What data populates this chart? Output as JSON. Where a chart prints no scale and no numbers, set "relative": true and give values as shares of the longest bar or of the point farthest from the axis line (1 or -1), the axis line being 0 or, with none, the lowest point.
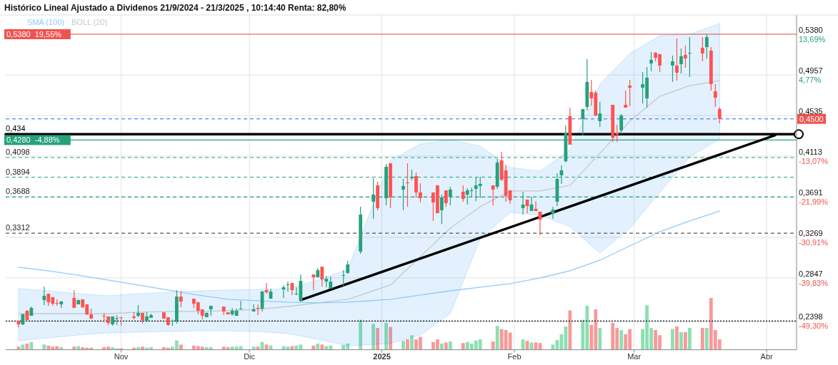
{
  "chart_data": [
    {
      "type": "candlestick",
      "title": "Histórico Lineal Ajustado a Dividenos 21/9/2024 - 21/3/2025 , 10:14:40 Renta: 82,80%",
      "x": [
        "2024-10-08",
        "2024-10-09",
        "2024-10-10",
        "2024-10-11",
        "2024-10-14",
        "2024-10-15",
        "2024-10-16",
        "2024-10-17",
        "2024-10-18",
        "2024-10-21",
        "2024-10-22",
        "2024-10-23",
        "2024-10-24",
        "2024-10-25",
        "2024-10-28",
        "2024-10-29",
        "2024-10-30",
        "2024-10-31",
        "2024-11-01",
        "2024-11-04",
        "2024-11-05",
        "2024-11-06",
        "2024-11-07",
        "2024-11-08",
        "2024-11-11",
        "2024-11-12",
        "2024-11-13",
        "2024-11-14",
        "2024-11-15",
        "2024-11-18",
        "2024-11-19",
        "2024-11-20",
        "2024-11-21",
        "2024-11-22",
        "2024-11-25",
        "2024-11-26",
        "2024-11-27",
        "2024-11-28",
        "2024-11-29",
        "2024-12-02",
        "2024-12-03",
        "2024-12-04",
        "2024-12-05",
        "2024-12-06",
        "2024-12-09",
        "2024-12-10",
        "2024-12-11",
        "2024-12-12",
        "2024-12-13",
        "2024-12-16",
        "2024-12-17",
        "2024-12-18",
        "2024-12-19",
        "2024-12-20",
        "2024-12-23",
        "2024-12-24",
        "2024-12-27",
        "2024-12-30",
        "2024-12-31",
        "2025-01-02",
        "2025-01-03",
        "2025-01-06",
        "2025-01-07",
        "2025-01-08",
        "2025-01-09",
        "2025-01-10",
        "2025-01-13",
        "2025-01-14",
        "2025-01-15",
        "2025-01-16",
        "2025-01-17",
        "2025-01-20",
        "2025-01-21",
        "2025-01-22",
        "2025-01-23",
        "2025-01-24",
        "2025-01-27",
        "2025-01-28",
        "2025-01-29",
        "2025-01-30",
        "2025-01-31",
        "2025-02-03",
        "2025-02-04",
        "2025-02-05",
        "2025-02-06",
        "2025-02-07",
        "2025-02-10",
        "2025-02-11",
        "2025-02-12",
        "2025-02-13",
        "2025-02-14",
        "2025-02-17",
        "2025-02-18",
        "2025-02-19",
        "2025-02-20",
        "2025-02-21",
        "2025-02-24",
        "2025-02-25",
        "2025-02-26",
        "2025-02-27",
        "2025-02-28",
        "2025-03-03",
        "2025-03-04",
        "2025-03-05",
        "2025-03-06",
        "2025-03-07",
        "2025-03-10",
        "2025-03-11",
        "2025-03-12",
        "2025-03-13",
        "2025-03-14",
        "2025-03-17",
        "2025-03-18",
        "2025-03-19",
        "2025-03-20",
        "2025-03-21"
      ],
      "ohlc": [
        [
          0.2401,
          0.2401,
          0.2335,
          0.2364
        ],
        [
          0.2364,
          0.2475,
          0.2357,
          0.2468
        ],
        [
          0.2505,
          0.2512,
          0.2409,
          0.2409
        ],
        [
          0.2453,
          0.2549,
          0.2453,
          0.2535
        ],
        [
          0.2616,
          0.2757,
          0.2564,
          0.2661
        ],
        [
          0.2683,
          0.2683,
          0.2557,
          0.2594
        ],
        [
          0.2646,
          0.2646,
          0.2557,
          0.2579
        ],
        [
          0.2587,
          0.2624,
          0.2557,
          0.258
        ],
        [
          0.2572,
          0.2609,
          0.2535,
          0.2601
        ],
        [
          0.2638,
          0.272,
          0.2535,
          0.2535
        ],
        [
          0.2572,
          0.2624,
          0.2572,
          0.2616
        ],
        [
          0.2624,
          0.2624,
          0.2535,
          0.2542
        ],
        [
          0.2572,
          0.2572,
          0.246,
          0.2468
        ],
        [
          0.2468,
          0.2527,
          0.2423,
          0.2423
        ],
        [
          0.2453,
          0.2483,
          0.2386,
          0.2446
        ],
        [
          0.2446,
          0.2446,
          0.2357,
          0.2379
        ],
        [
          0.2364,
          0.2446,
          0.2349,
          0.2446
        ],
        [
          0.2423,
          0.246,
          0.2357,
          0.2427
        ],
        [
          0.2438,
          0.2438,
          0.2349,
          0.2431
        ],
        [
          0.2446,
          0.249,
          0.2416,
          0.2431
        ],
        [
          0.2453,
          0.2564,
          0.2438,
          0.2483
        ],
        [
          0.2483,
          0.2483,
          0.2372,
          0.2409
        ],
        [
          0.2401,
          0.249,
          0.2386,
          0.2446
        ],
        [
          0.2431,
          0.2475,
          0.2431,
          0.246
        ],
        [
          0.249,
          0.249,
          0.2423,
          0.2423
        ],
        [
          0.2438,
          0.2438,
          0.2349,
          0.2357
        ],
        [
          0.2394,
          0.2416,
          0.2349,
          0.2401
        ],
        [
          0.2401,
          0.272,
          0.2372,
          0.2653
        ],
        [
          0.2653,
          0.2712,
          0.2542,
          0.2601
        ],
        [
          0.2631,
          0.2631,
          0.2535,
          0.2579
        ],
        [
          0.2594,
          0.2594,
          0.2468,
          0.2505
        ],
        [
          0.252,
          0.252,
          0.2416,
          0.2453
        ],
        [
          0.2438,
          0.249,
          0.2438,
          0.2483
        ],
        [
          0.252,
          0.2557,
          0.2453,
          0.2557
        ],
        [
          0.2549,
          0.2549,
          0.246,
          0.2498
        ],
        [
          0.249,
          0.249,
          0.2468,
          0.2468
        ],
        [
          0.2468,
          0.2535,
          0.2453,
          0.2505
        ],
        [
          0.2453,
          0.2527,
          0.2453,
          0.2505
        ],
        [
          0.252,
          0.2609,
          0.252,
          0.2527
        ],
        [
          0.2498,
          0.2572,
          0.2498,
          0.252
        ],
        [
          0.2535,
          0.2572,
          0.246,
          0.2527
        ],
        [
          0.2527,
          0.2712,
          0.2498,
          0.2705
        ],
        [
          0.272,
          0.2794,
          0.2683,
          0.2698
        ],
        [
          0.2631,
          0.2735,
          0.2631,
          0.2705
        ],
        [
          0.2727,
          0.2772,
          0.2638,
          0.275
        ],
        [
          0.2772,
          0.2809,
          0.2705,
          0.2779
        ],
        [
          0.2794,
          0.2794,
          0.2668,
          0.272
        ],
        [
          0.2675,
          0.275,
          0.2668,
          0.2683
        ],
        [
          0.2609,
          0.2883,
          0.2609,
          0.2816
        ],
        [
          0.2883,
          0.2883,
          0.272,
          0.2853
        ],
        [
          0.2853,
          0.295,
          0.2853,
          0.2927
        ],
        [
          0.2964,
          0.2964,
          0.2757,
          0.2831
        ],
        [
          0.2809,
          0.2868,
          0.275,
          0.2838
        ],
        [
          0.2735,
          0.2861,
          0.2735,
          0.2809
        ],
        [
          0.2868,
          0.2927,
          0.2764,
          0.2875
        ],
        [
          0.2898,
          0.3024,
          0.289,
          0.2987
        ],
        [
          0.312,
          0.3587,
          0.3098,
          0.3505
        ],
        [
          0.3639,
          0.3883,
          0.3461,
          0.3713
        ],
        [
          0.3809,
          0.3846,
          0.355,
          0.3572
        ],
        [
          0.3676,
          0.4031,
          0.3602,
          0.4002
        ],
        [
          0.4039,
          0.4039,
          0.3572,
          0.3683
        ],
        [
          0.3765,
          0.3876,
          0.355,
          0.3802
        ],
        [
          0.3839,
          0.4039,
          0.3587,
          0.3831
        ],
        [
          0.3883,
          0.3972,
          0.3861,
          0.3898
        ],
        [
          0.3905,
          0.3942,
          0.3683,
          0.3735
        ],
        [
          0.3735,
          0.3831,
          0.3631,
          0.3676
        ],
        [
          0.3735,
          0.3735,
          0.3439,
          0.3631
        ],
        [
          0.3809,
          0.3809,
          0.352,
          0.352
        ],
        [
          0.355,
          0.3713,
          0.3409,
          0.3683
        ],
        [
          0.3757,
          0.3757,
          0.3587,
          0.3624
        ],
        [
          0.3691,
          0.3794,
          0.3602,
          0.3765
        ],
        [
          0.3742,
          0.3809,
          0.3639,
          0.3668
        ],
        [
          0.3713,
          0.378,
          0.3609,
          0.3757
        ],
        [
          0.375,
          0.3787,
          0.3683,
          0.3757
        ],
        [
          0.3772,
          0.3898,
          0.3646,
          0.3809
        ],
        [
          0.3802,
          0.3898,
          0.3676,
          0.3824
        ],
        [
          0.3809,
          0.3809,
          0.3602,
          0.3765
        ],
        [
          0.3794,
          0.4083,
          0.3772,
          0.4046
        ],
        [
          0.4068,
          0.4157,
          0.3853,
          0.3868
        ],
        [
          0.3965,
          0.4017,
          0.3639,
          0.3698
        ],
        [
          0.3757,
          0.3757,
          0.3617,
          0.3653
        ],
        [
          0.3572,
          0.3742,
          0.3505,
          0.3609
        ],
        [
          0.3661,
          0.3661,
          0.352,
          0.3594
        ],
        [
          0.3542,
          0.3691,
          0.3542,
          0.3609
        ],
        [
          0.3565,
          0.3646,
          0.3542,
          0.3542
        ],
        [
          0.3535,
          0.3535,
          0.329,
          0.3453
        ],
        [
          0.3513,
          0.3587,
          0.3461,
          0.3557
        ],
        [
          0.3639,
          0.3935,
          0.3594,
          0.3876
        ],
        [
          0.3913,
          0.4017,
          0.3824,
          0.3965
        ],
        [
          0.4061,
          0.4431,
          0.4046,
          0.435
        ],
        [
          0.4528,
          0.4617,
          0.4232,
          0.4232
        ],
        [
          0.4498,
          0.4602,
          0.4328,
          0.4602
        ],
        [
          0.4624,
          0.5121,
          0.4587,
          0.4884
        ],
        [
          0.478,
          0.4906,
          0.4639,
          0.4713
        ],
        [
          0.4772,
          0.4795,
          0.4528,
          0.4535
        ],
        [
          0.4476,
          0.4676,
          0.4417,
          0.4557
        ],
        [
          0.4646,
          0.4646,
          0.4261,
          0.4306
        ],
        [
          0.4357,
          0.4439,
          0.4261,
          0.4335
        ],
        [
          0.438,
          0.455,
          0.4343,
          0.4535
        ],
        [
          0.4646,
          0.4795,
          0.4617,
          0.4617
        ],
        [
          0.4846,
          0.4906,
          0.4632,
          0.4824
        ],
        [
          0.4824,
          0.4987,
          0.4661,
          0.4861
        ],
        [
          0.4713,
          0.5039,
          0.4617,
          0.4928
        ],
        [
          0.5076,
          0.5195,
          0.4995,
          0.5113
        ],
        [
          0.5187,
          0.5195,
          0.5098,
          0.5135
        ],
        [
          0.5173,
          0.5173,
          0.4987,
          0.5054
        ],
        [
          0.5054,
          0.5158,
          0.4884,
          0.5098
        ],
        [
          0.5054,
          0.5336,
          0.4898,
          0.498
        ],
        [
          0.5069,
          0.5232,
          0.4972,
          0.515
        ],
        [
          0.5165,
          0.5261,
          0.5032,
          0.5128
        ],
        [
          0.518,
          0.535,
          0.4935,
          0.5187
        ],
        [
          0.5239,
          0.535,
          0.5098,
          0.518
        ],
        [
          0.5246,
          0.538,
          0.5128,
          0.535
        ],
        [
          0.521,
          0.5246,
          0.4795,
          0.4861
        ],
        [
          0.4787,
          0.4861,
          0.4624,
          0.472
        ],
        [
          0.4602,
          0.4624,
          0.4454,
          0.45
        ]
      ],
      "colors": [
        "#ff5252",
        "#26a17b",
        "#ff5252",
        "#26a17b",
        "#26a17b",
        "#ff5252",
        "#ff5252",
        "#ff5252",
        "#26a17b",
        "#ff5252",
        "#26a17b",
        "#ff5252",
        "#ff5252",
        "#ff5252",
        "#ff5252",
        "#ff5252",
        "#26a17b",
        "#26a17b",
        "#ff5252",
        "#ff5252",
        "#26a17b",
        "#ff5252",
        "#26a17b",
        "#26a17b",
        "#ff5252",
        "#ff5252",
        "#26a17b",
        "#26a17b",
        "#ff5252",
        "#ff5252",
        "#ff5252",
        "#ff5252",
        "#26a17b",
        "#26a17b",
        "#ff5252",
        "#ff5252",
        "#26a17b",
        "#26a17b",
        "#26a17b",
        "#26a17b",
        "#ff5252",
        "#26a17b",
        "#ff5252",
        "#26a17b",
        "#26a17b",
        "#26a17b",
        "#ff5252",
        "#26a17b",
        "#26a17b",
        "#ff5252",
        "#26a17b",
        "#ff5252",
        "#26a17b",
        "#26a17b",
        "#26a17b",
        "#26a17b",
        "#26a17b",
        "#26a17b",
        "#ff5252",
        "#26a17b",
        "#ff5252",
        "#26a17b",
        "#ff5252",
        "#26a17b",
        "#ff5252",
        "#ff5252",
        "#ff5252",
        "#ff5252",
        "#26a17b",
        "#ff5252",
        "#26a17b",
        "#ff5252",
        "#26a17b",
        "#26a17b",
        "#26a17b",
        "#26a17b",
        "#ff5252",
        "#26a17b",
        "#ff5252",
        "#ff5252",
        "#ff5252",
        "#26a17b",
        "#ff5252",
        "#26a17b",
        "#ff5252",
        "#ff5252",
        "#26a17b",
        "#26a17b",
        "#26a17b",
        "#26a17b",
        "#ff5252",
        "#26a17b",
        "#26a17b",
        "#ff5252",
        "#ff5252",
        "#26a17b",
        "#ff5252",
        "#ff5252",
        "#26a17b",
        "#ff5252",
        "#ff5252",
        "#26a17b",
        "#26a17b",
        "#26a17b",
        "#ff5252",
        "#ff5252",
        "#26a17b",
        "#ff5252",
        "#26a17b",
        "#ff5252",
        "#26a17b",
        "#ff5252",
        "#26a17b",
        "#ff5252",
        "#ff5252",
        "#ff5252"
      ],
      "series": [
        {
          "name": "SMA (100)",
          "type": "line",
          "color": "#90caf9",
          "x": [
            "2024-10-08",
            "2024-10-15",
            "2024-10-22",
            "2024-10-29",
            "2024-11-05",
            "2024-11-12",
            "2024-11-19",
            "2024-11-26",
            "2024-12-03",
            "2024-12-10",
            "2024-12-17",
            "2024-12-24",
            "2025-01-03",
            "2025-01-10",
            "2025-01-17",
            "2025-01-24",
            "2025-01-31",
            "2025-02-07",
            "2025-02-14",
            "2025-02-21",
            "2025-02-28",
            "2025-03-07",
            "2025-03-14",
            "2025-03-21"
          ],
          "values": [
            0.2957,
            0.292,
            0.2875,
            0.2824,
            0.2772,
            0.272,
            0.2668,
            0.2624,
            0.2609,
            0.2594,
            0.2587,
            0.2594,
            0.2624,
            0.2668,
            0.2712,
            0.275,
            0.2787,
            0.2846,
            0.292,
            0.3031,
            0.3179,
            0.3327,
            0.3439,
            0.3542
          ]
        },
        {
          "name": "BOLL (20)",
          "type": "line",
          "color": "#c8c8c8",
          "x": [
            "2024-10-08",
            "2024-10-15",
            "2024-10-22",
            "2024-10-29",
            "2024-11-05",
            "2024-11-12",
            "2024-11-19",
            "2024-11-26",
            "2024-12-03",
            "2024-12-10",
            "2024-12-17",
            "2024-12-24",
            "2025-01-03",
            "2025-01-10",
            "2025-01-17",
            "2025-01-24",
            "2025-01-31",
            "2025-02-07",
            "2025-02-14",
            "2025-02-21",
            "2025-02-28",
            "2025-03-07",
            "2025-03-14",
            "2025-03-21"
          ],
          "values": [
            0.2475,
            0.2475,
            0.2475,
            0.2475,
            0.249,
            0.2498,
            0.2498,
            0.2505,
            0.252,
            0.2549,
            0.2587,
            0.2624,
            0.2772,
            0.3068,
            0.3364,
            0.3587,
            0.375,
            0.375,
            0.3809,
            0.4143,
            0.4476,
            0.4735,
            0.4846,
            0.4898
          ],
          "lower": [
            0.2194,
            0.2223,
            0.2253,
            0.2275,
            0.2283,
            0.229,
            0.2297,
            0.2297,
            0.229,
            0.2268,
            0.2209,
            0.2142,
            0.2164,
            0.2253,
            0.2475,
            0.3253,
            0.3528,
            0.3498,
            0.3379,
            0.3105,
            0.3364,
            0.3735,
            0.4105,
            0.4291
          ],
          "upper": [
            0.2735,
            0.2712,
            0.2683,
            0.2661,
            0.2683,
            0.2698,
            0.2712,
            0.272,
            0.2727,
            0.2735,
            0.2824,
            0.2935,
            0.4068,
            0.4239,
            0.4283,
            0.4217,
            0.3994,
            0.3957,
            0.418,
            0.4861,
            0.518,
            0.5365,
            0.538,
            0.5491
          ]
        },
        {
          "type": "line",
          "color": "#000000",
          "x": [
            "2024-12-13",
            "2025-04-03"
          ],
          "values": [
            0.2616,
            0.433
          ]
        },
        {
          "type": "line",
          "color": "#000000",
          "x": [
            "2024-10-05",
            "2025-04-08"
          ],
          "values": [
            0.434,
            0.434
          ]
        }
      ],
      "xlim": [
        "2024-10-05",
        "2025-04-08"
      ],
      "xticks": [
        {
          "value": "2024-11-01",
          "label": "Nov"
        },
        {
          "value": "2024-12-01",
          "label": "Dic"
        },
        {
          "value": "2025-01-01",
          "label": "2025"
        },
        {
          "value": "2025-02-01",
          "label": "Feb"
        },
        {
          "value": "2025-03-01",
          "label": "Mar"
        },
        {
          "value": "2025-04-01",
          "label": "Abr"
        }
      ],
      "ylim": [
        0.21,
        0.558
      ],
      "yticks": [
        {
          "value": 0.538,
          "label": "0,5380"
        },
        {
          "value": 0.4957,
          "label": "0,4957"
        },
        {
          "value": 0.4535,
          "label": "0,4535"
        },
        {
          "value": 0.4113,
          "label": "0,4113"
        },
        {
          "value": 0.3691,
          "label": "0,3691"
        },
        {
          "value": 0.3269,
          "label": "0,3269"
        },
        {
          "value": 0.2847,
          "label": "0,2847"
        },
        {
          "value": 0.2398,
          "label": "0,2398"
        }
      ],
      "y2lim": [
        -55.62,
        17.92
      ],
      "y2ticks": [
        {
          "value": 13.69,
          "label": "13,69%"
        },
        {
          "value": 4.77,
          "label": "4,77%"
        },
        {
          "value": -13.07,
          "label": "-13,07%"
        },
        {
          "value": -21.99,
          "label": "-21,99%"
        },
        {
          "value": -30.91,
          "label": "-30,91%"
        },
        {
          "value": -39.83,
          "label": "-39,83%"
        },
        {
          "value": -49.3,
          "label": "-49,30%"
        }
      ],
      "ref_lines": [
        {
          "axis": "y",
          "value": 0.538,
          "label": "0,5380  19,55%",
          "color": "#ef5350",
          "line_style": "solid"
        },
        {
          "axis": "y",
          "value": 0.428,
          "label": "0,4280  -4,88%",
          "color": "#26a17b",
          "line_style": "solid"
        },
        {
          "axis": "y",
          "value": 0.45,
          "color": "#2962ff",
          "line_style": "dashed"
        },
        {
          "axis": "y",
          "value": 0.4098,
          "label": "0,4098",
          "color": "#26a17b",
          "line_style": "dashed"
        },
        {
          "axis": "y",
          "value": 0.3894,
          "label": "0,3894",
          "color": "#26a17b",
          "line_style": "dashed"
        },
        {
          "axis": "y",
          "value": 0.3688,
          "label": "0,3688",
          "color": "#26a17b",
          "line_style": "dashed"
        },
        {
          "axis": "y",
          "value": 0.3312,
          "label": "0,3312",
          "color": "#555555",
          "line_style": "dashed"
        },
        {
          "axis": "y",
          "value": 0.2398,
          "color": "#000000",
          "line_style": "dotted"
        }
      ],
      "annotations": [
        {
          "text": "0,434",
          "x": "2024-10-05",
          "y": 0.434
        },
        {
          "text": "0,4500",
          "y": 0.45
        }
      ],
      "grid": true,
      "legend": "top left"
    },
    {
      "type": "bar",
      "relative": true,
      "tick_labels": false,
      "xlim": [
        "2024-10-05",
        "2025-04-08"
      ],
      "x": [
        "2024-10-08",
        "2024-10-09",
        "2024-10-10",
        "2024-10-11",
        "2024-10-14",
        "2024-10-15",
        "2024-10-16",
        "2024-10-17",
        "2024-10-18",
        "2024-10-21",
        "2024-10-22",
        "2024-10-23",
        "2024-10-24",
        "2024-10-25",
        "2024-10-28",
        "2024-10-29",
        "2024-10-30",
        "2024-10-31",
        "2024-11-01",
        "2024-11-04",
        "2024-11-05",
        "2024-11-06",
        "2024-11-07",
        "2024-11-08",
        "2024-11-11",
        "2024-11-12",
        "2024-11-13",
        "2024-11-14",
        "2024-11-15",
        "2024-11-18",
        "2024-11-19",
        "2024-11-20",
        "2024-11-21",
        "2024-11-22",
        "2024-11-25",
        "2024-11-26",
        "2024-11-27",
        "2024-11-28",
        "2024-11-29",
        "2024-12-02",
        "2024-12-03",
        "2024-12-04",
        "2024-12-05",
        "2024-12-06",
        "2024-12-09",
        "2024-12-10",
        "2024-12-11",
        "2024-12-12",
        "2024-12-13",
        "2024-12-16",
        "2024-12-17",
        "2024-12-18",
        "2024-12-19",
        "2024-12-20",
        "2024-12-23",
        "2024-12-24",
        "2024-12-27",
        "2024-12-30",
        "2024-12-31",
        "2025-01-02",
        "2025-01-03",
        "2025-01-06",
        "2025-01-07",
        "2025-01-08",
        "2025-01-09",
        "2025-01-10",
        "2025-01-13",
        "2025-01-14",
        "2025-01-15",
        "2025-01-16",
        "2025-01-17",
        "2025-01-20",
        "2025-01-21",
        "2025-01-22",
        "2025-01-23",
        "2025-01-24",
        "2025-01-27",
        "2025-01-28",
        "2025-01-29",
        "2025-01-30",
        "2025-01-31",
        "2025-02-03",
        "2025-02-04",
        "2025-02-05",
        "2025-02-06",
        "2025-02-07",
        "2025-02-10",
        "2025-02-11",
        "2025-02-12",
        "2025-02-13",
        "2025-02-14",
        "2025-02-17",
        "2025-02-18",
        "2025-02-19",
        "2025-02-20",
        "2025-02-21",
        "2025-02-24",
        "2025-02-25",
        "2025-02-26",
        "2025-02-27",
        "2025-02-28",
        "2025-03-03",
        "2025-03-04",
        "2025-03-05",
        "2025-03-06",
        "2025-03-07",
        "2025-03-10",
        "2025-03-11",
        "2025-03-12",
        "2025-03-13",
        "2025-03-14",
        "2025-03-17",
        "2025-03-18",
        "2025-03-19",
        "2025-03-20",
        "2025-03-21"
      ],
      "values": [
        0.06,
        0.1,
        0.12,
        0.15,
        0.1,
        0.08,
        0.06,
        0.07,
        0.05,
        0.06,
        0.07,
        0.05,
        0.04,
        0.04,
        0.05,
        0.06,
        0.05,
        0.03,
        0.03,
        0.04,
        0.05,
        0.06,
        0.04,
        0.05,
        0.05,
        0.04,
        0.06,
        0.18,
        0.1,
        0.08,
        0.07,
        0.06,
        0.05,
        0.05,
        0.06,
        0.05,
        0.06,
        0.06,
        0.07,
        0.06,
        0.06,
        0.15,
        0.1,
        0.08,
        0.07,
        0.06,
        0.07,
        0.08,
        0.1,
        0.08,
        0.12,
        0.1,
        0.07,
        0.08,
        0.09,
        0.12,
        0.58,
        0.5,
        0.42,
        0.52,
        0.44,
        0.17,
        0.2,
        0.28,
        0.2,
        0.25,
        0.15,
        0.2,
        0.12,
        0.14,
        0.16,
        0.13,
        0.15,
        0.12,
        0.18,
        0.2,
        0.16,
        0.46,
        0.4,
        0.38,
        0.33,
        0.2,
        0.17,
        0.14,
        0.14,
        0.13,
        0.1,
        0.19,
        0.3,
        0.45,
        0.76,
        0.58,
        0.85,
        0.48,
        0.78,
        0.42,
        0.52,
        0.42,
        0.38,
        0.3,
        0.4,
        0.4,
        0.86,
        0.42,
        0.38,
        0.28,
        0.4,
        0.45,
        0.34,
        0.34,
        0.42,
        0.42,
        0.42,
        1,
        0.38,
        0.2
      ],
      "colors": [
        "#f79a9a",
        "#8ddfb2",
        "#f79a9a",
        "#8ddfb2",
        "#8ddfb2",
        "#f79a9a",
        "#f79a9a",
        "#f79a9a",
        "#8ddfb2",
        "#f79a9a",
        "#8ddfb2",
        "#f79a9a",
        "#f79a9a",
        "#f79a9a",
        "#f79a9a",
        "#f79a9a",
        "#8ddfb2",
        "#8ddfb2",
        "#f79a9a",
        "#f79a9a",
        "#8ddfb2",
        "#f79a9a",
        "#8ddfb2",
        "#8ddfb2",
        "#f79a9a",
        "#f79a9a",
        "#8ddfb2",
        "#8ddfb2",
        "#f79a9a",
        "#f79a9a",
        "#f79a9a",
        "#f79a9a",
        "#8ddfb2",
        "#8ddfb2",
        "#f79a9a",
        "#f79a9a",
        "#8ddfb2",
        "#8ddfb2",
        "#8ddfb2",
        "#8ddfb2",
        "#f79a9a",
        "#8ddfb2",
        "#f79a9a",
        "#8ddfb2",
        "#8ddfb2",
        "#8ddfb2",
        "#f79a9a",
        "#8ddfb2",
        "#8ddfb2",
        "#f79a9a",
        "#8ddfb2",
        "#f79a9a",
        "#8ddfb2",
        "#8ddfb2",
        "#8ddfb2",
        "#8ddfb2",
        "#8ddfb2",
        "#8ddfb2",
        "#f79a9a",
        "#8ddfb2",
        "#f79a9a",
        "#8ddfb2",
        "#f79a9a",
        "#8ddfb2",
        "#f79a9a",
        "#f79a9a",
        "#f79a9a",
        "#f79a9a",
        "#8ddfb2",
        "#f79a9a",
        "#8ddfb2",
        "#f79a9a",
        "#8ddfb2",
        "#8ddfb2",
        "#8ddfb2",
        "#8ddfb2",
        "#f79a9a",
        "#8ddfb2",
        "#f79a9a",
        "#f79a9a",
        "#f79a9a",
        "#8ddfb2",
        "#f79a9a",
        "#8ddfb2",
        "#f79a9a",
        "#f79a9a",
        "#8ddfb2",
        "#8ddfb2",
        "#8ddfb2",
        "#8ddfb2",
        "#f79a9a",
        "#8ddfb2",
        "#8ddfb2",
        "#f79a9a",
        "#f79a9a",
        "#8ddfb2",
        "#f79a9a",
        "#f79a9a",
        "#8ddfb2",
        "#f79a9a",
        "#f79a9a",
        "#8ddfb2",
        "#8ddfb2",
        "#8ddfb2",
        "#f79a9a",
        "#f79a9a",
        "#8ddfb2",
        "#f79a9a",
        "#8ddfb2",
        "#f79a9a",
        "#8ddfb2",
        "#f79a9a",
        "#8ddfb2",
        "#f79a9a",
        "#f79a9a",
        "#f79a9a"
      ]
    }
  ]
}
